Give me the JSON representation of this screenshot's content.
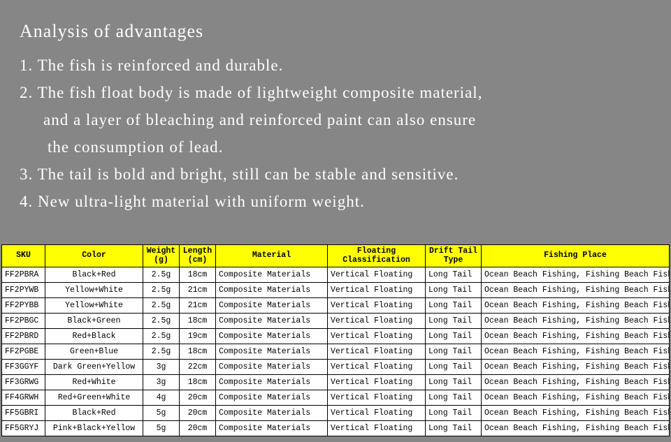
{
  "panel": {
    "title": "Analysis of advantages",
    "lines": [
      "1. The fish is reinforced and durable.",
      "2. The fish float body is made of lightweight composite material,",
      "and a layer of bleaching and reinforced paint can also ensure",
      "the consumption of lead.",
      "3. The tail is bold and bright, still can be stable and sensitive.",
      "4. New ultra-light material with uniform weight."
    ]
  },
  "table": {
    "headers": {
      "sku": "SKU",
      "color": "Color",
      "weight": "Weight (g)",
      "length": "Length (cm)",
      "material": "Material",
      "floating": "Floating Classification",
      "drift": "Drift Tail Type",
      "place": "Fishing Place"
    },
    "rows": [
      {
        "sku": "FF2PBRA",
        "color": "Black+Red",
        "weight": "2.5g",
        "length": "18cm",
        "material": "Composite Materials",
        "floating": "Vertical Floating",
        "drift": "Long Tail",
        "place": "Ocean Beach Fishing, Fishing Beach Fishing"
      },
      {
        "sku": "FF2PYWB",
        "color": "Yellow+White",
        "weight": "2.5g",
        "length": "21cm",
        "material": "Composite Materials",
        "floating": "Vertical Floating",
        "drift": "Long Tail",
        "place": "Ocean Beach Fishing, Fishing Beach Fishing"
      },
      {
        "sku": "FF2PYBB",
        "color": "Yellow+White",
        "weight": "2.5g",
        "length": "21cm",
        "material": "Composite Materials",
        "floating": "Vertical Floating",
        "drift": "Long Tail",
        "place": "Ocean Beach Fishing, Fishing Beach Fishing"
      },
      {
        "sku": "FF2PBGC",
        "color": "Black+Green",
        "weight": "2.5g",
        "length": "18cm",
        "material": "Composite Materials",
        "floating": "Vertical Floating",
        "drift": "Long Tail",
        "place": "Ocean Beach Fishing, Fishing Beach Fishing"
      },
      {
        "sku": "FF2PBRD",
        "color": "Red+Black",
        "weight": "2.5g",
        "length": "19cm",
        "material": "Composite Materials",
        "floating": "Vertical Floating",
        "drift": "Long Tail",
        "place": "Ocean Beach Fishing, Fishing Beach Fishing"
      },
      {
        "sku": "FF2PGBE",
        "color": "Green+Blue",
        "weight": "2.5g",
        "length": "18cm",
        "material": "Composite Materials",
        "floating": "Vertical Floating",
        "drift": "Long Tail",
        "place": "Ocean Beach Fishing, Fishing Beach Fishing"
      },
      {
        "sku": "FF3GGYF",
        "color": "Dark Green+Yellow",
        "weight": "3g",
        "length": "22cm",
        "material": "Composite Materials",
        "floating": "Vertical Floating",
        "drift": "Long Tail",
        "place": "Ocean Beach Fishing, Fishing Beach Fishing"
      },
      {
        "sku": "FF3GRWG",
        "color": "Red+White",
        "weight": "3g",
        "length": "18cm",
        "material": "Composite Materials",
        "floating": "Vertical Floating",
        "drift": "Long Tail",
        "place": "Ocean Beach Fishing, Fishing Beach Fishing"
      },
      {
        "sku": "FF4GRWH",
        "color": "Red+Green+White",
        "weight": "4g",
        "length": "20cm",
        "material": "Composite Materials",
        "floating": "Vertical Floating",
        "drift": "Long Tail",
        "place": "Ocean Beach Fishing, Fishing Beach Fishing"
      },
      {
        "sku": "FF5GBRI",
        "color": "Black+Red",
        "weight": "5g",
        "length": "20cm",
        "material": "Composite Materials",
        "floating": "Vertical Floating",
        "drift": "Long Tail",
        "place": "Ocean Beach Fishing, Fishing Beach Fishing"
      },
      {
        "sku": "FF5GRYJ",
        "color": "Pink+Black+Yellow",
        "weight": "5g",
        "length": "20cm",
        "material": "Composite Materials",
        "floating": "Vertical Floating",
        "drift": "Long Tail",
        "place": "Ocean Beach Fishing, Fishing Beach Fishing"
      }
    ]
  }
}
